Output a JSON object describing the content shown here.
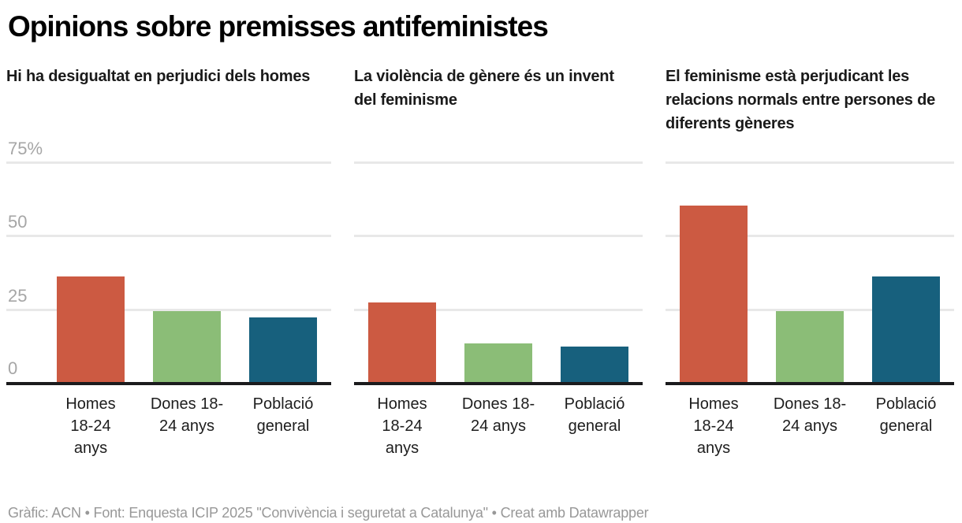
{
  "header": {
    "title": "Opinions sobre premisses antifeministes"
  },
  "chart_data": {
    "type": "bar",
    "layout": "small_multiples",
    "unit": "%",
    "ylim": [
      0,
      75
    ],
    "yticks": [
      0,
      25,
      50,
      75
    ],
    "ytick_labels": [
      "0",
      "25",
      "50",
      "75%"
    ],
    "grid": "horizontal",
    "legend_position": "none",
    "categories": [
      "Homes 18-24 anys",
      "Dones 18-24 anys",
      "Població general"
    ],
    "category_display": [
      "Homes\n18-24\nanys",
      "Dones 18-\n24 anys",
      "Població\ngeneral"
    ],
    "series_colors": [
      "#cc5a42",
      "#8bbd77",
      "#17607d"
    ],
    "panels": [
      {
        "title": "Hi ha desigualtat en perjudici dels homes",
        "values": [
          36,
          24,
          22
        ]
      },
      {
        "title": "La violència de gènere és un invent del feminisme",
        "values": [
          27,
          13,
          12
        ]
      },
      {
        "title": "El feminisme està perjudicant les relacions normals entre persones de diferents gèneres",
        "values": [
          60,
          24,
          36
        ]
      }
    ]
  },
  "footer": {
    "credit": "Gràfic: ACN • Font: Enquesta ICIP 2025 \"Convivència i seguretat a Catalunya\" • Creat amb Datawrapper"
  },
  "colors": {
    "bar_homes": "#cc5a42",
    "bar_dones": "#8bbd77",
    "bar_poblacio": "#17607d",
    "gridline": "#e8e8e8",
    "axis_text": "#a6a6a6",
    "baseline": "#1b1b1d",
    "title_text": "#000000",
    "subtitle_text": "#1a1a1a",
    "footer_text": "#989898"
  }
}
